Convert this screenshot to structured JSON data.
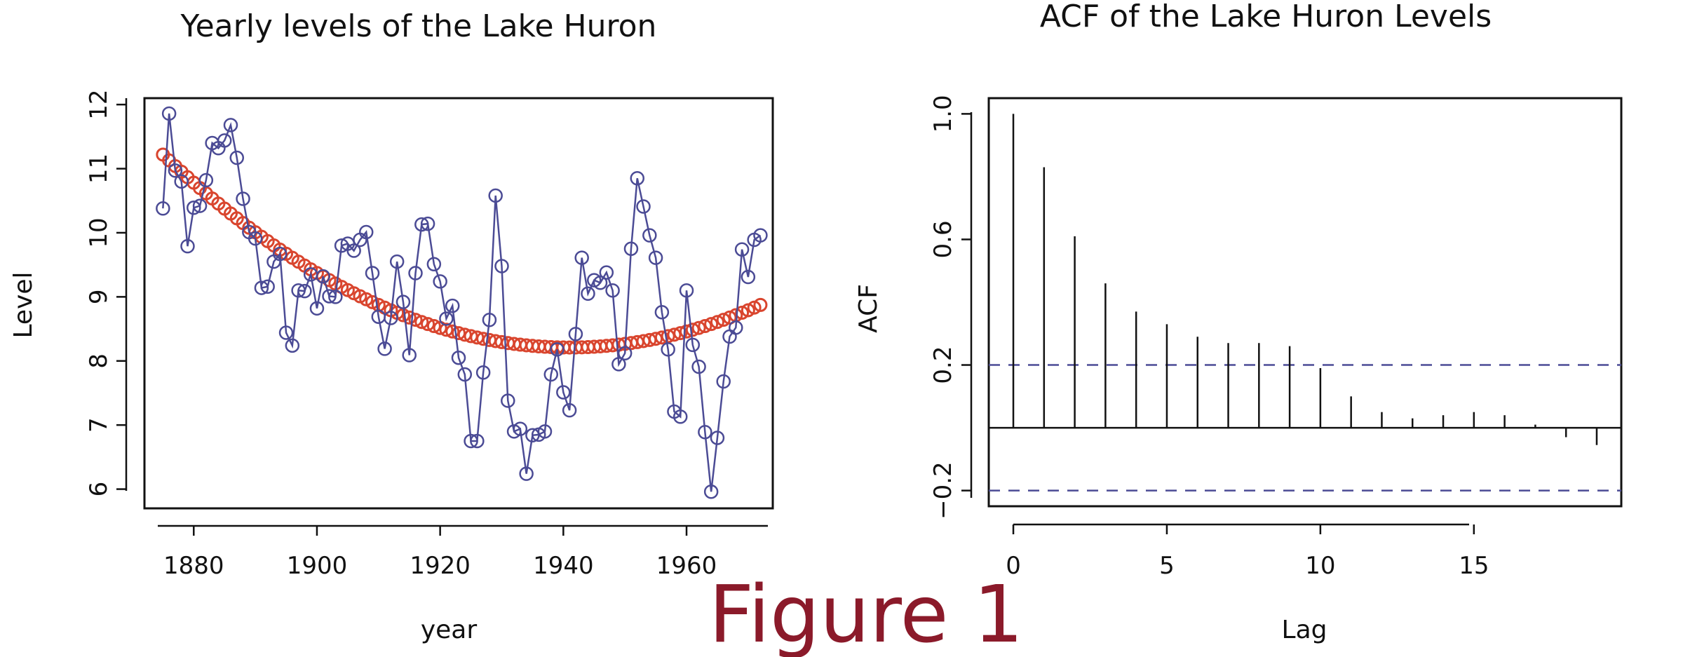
{
  "caption": "Figure 1",
  "chart_data": [
    {
      "type": "line",
      "title": "Yearly levels of the Lake Huron",
      "xlabel": "year",
      "ylabel": "Level",
      "xlim": [
        1872,
        1974
      ],
      "ylim": [
        5.7,
        12.1
      ],
      "x_ticks": [
        1880,
        1900,
        1920,
        1940,
        1960
      ],
      "y_ticks": [
        6,
        7,
        8,
        9,
        10,
        11,
        12
      ],
      "grid": false,
      "colors": {
        "series": "#4b4b95",
        "trend": "#d9452e"
      },
      "series": [
        {
          "style": "line-with-circles",
          "x_start": 1875,
          "x_step": 1,
          "values": [
            10.38,
            11.86,
            10.97,
            10.8,
            9.79,
            10.39,
            10.42,
            10.82,
            11.4,
            11.32,
            11.44,
            11.68,
            11.17,
            10.53,
            10.01,
            9.91,
            9.14,
            9.16,
            9.55,
            9.67,
            8.44,
            8.24,
            9.1,
            9.09,
            9.35,
            8.82,
            9.32,
            9.01,
            9.0,
            9.8,
            9.83,
            9.72,
            9.89,
            10.01,
            9.37,
            8.69,
            8.19,
            8.67,
            9.55,
            8.92,
            8.09,
            9.37,
            10.13,
            10.14,
            9.51,
            9.24,
            8.66,
            8.86,
            8.05,
            7.79,
            6.75,
            6.75,
            7.82,
            8.64,
            10.58,
            9.48,
            7.38,
            6.9,
            6.94,
            6.24,
            6.84,
            6.85,
            6.9,
            7.79,
            8.18,
            7.51,
            7.23,
            8.42,
            9.61,
            9.05,
            9.26,
            9.22,
            9.38,
            9.1,
            7.95,
            8.12,
            9.75,
            10.85,
            10.41,
            9.96,
            9.61,
            8.76,
            8.18,
            7.21,
            7.13,
            9.1,
            8.25,
            7.91,
            6.89,
            5.96,
            6.8,
            7.68,
            8.38,
            8.52,
            9.74,
            9.31,
            9.89,
            9.96
          ]
        },
        {
          "style": "circles",
          "x_start": 1875,
          "x_step": 1,
          "quadratic_trend": {
            "min_year": 1941,
            "min_level": 8.21,
            "level_at_1875": 11.22
          }
        }
      ]
    },
    {
      "type": "bar",
      "title": "ACF of the Lake Huron Levels",
      "xlabel": "Lag",
      "ylabel": "ACF",
      "xlim": [
        -0.8,
        19.8
      ],
      "ylim": [
        -0.25,
        1.05
      ],
      "x_ticks": [
        0,
        5,
        10,
        15
      ],
      "y_ticks": [
        -0.2,
        0.2,
        0.6,
        1.0
      ],
      "y_tick_labels": [
        "−0.2",
        "0.2",
        "0.6",
        "1.0"
      ],
      "grid": false,
      "confidence_band": 0.2,
      "colors": {
        "bars": "#111111",
        "band": "#4b4b95"
      },
      "lags": [
        0,
        1,
        2,
        3,
        4,
        5,
        6,
        7,
        8,
        9,
        10,
        11,
        12,
        13,
        14,
        15,
        16,
        17,
        18,
        19
      ],
      "values": [
        1.0,
        0.83,
        0.61,
        0.46,
        0.37,
        0.33,
        0.29,
        0.27,
        0.27,
        0.26,
        0.19,
        0.1,
        0.05,
        0.03,
        0.04,
        0.05,
        0.04,
        0.01,
        -0.03,
        -0.055
      ]
    }
  ]
}
